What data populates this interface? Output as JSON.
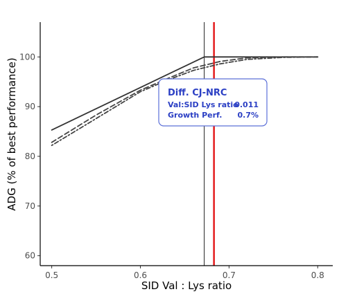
{
  "chart_data": {
    "type": "line",
    "xlabel": "SID Val : Lys ratio",
    "ylabel": "ADG (% of best performance)",
    "xlim": [
      0.487,
      0.817
    ],
    "ylim": [
      58,
      107
    ],
    "x_ticks": [
      0.5,
      0.6,
      0.7,
      0.8
    ],
    "x_tick_labels": [
      "0.5",
      "0.6",
      "0.7",
      "0.8"
    ],
    "y_ticks": [
      60,
      70,
      80,
      90,
      100
    ],
    "y_tick_labels": [
      "60",
      "70",
      "80",
      "90",
      "100"
    ],
    "grid": false,
    "series": [
      {
        "style": "solid",
        "color": "#333333",
        "points": [
          [
            0.5,
            85.3
          ],
          [
            0.672,
            100
          ],
          [
            0.8,
            100
          ]
        ]
      },
      {
        "style": "dashed",
        "color": "#444444",
        "points": [
          [
            0.5,
            82.8
          ],
          [
            0.55,
            88.3
          ],
          [
            0.6,
            93.3
          ],
          [
            0.63,
            95.6
          ],
          [
            0.66,
            97.8
          ],
          [
            0.69,
            99.1
          ],
          [
            0.72,
            99.8
          ],
          [
            0.76,
            100
          ],
          [
            0.8,
            100
          ]
        ]
      },
      {
        "style": "dotdash",
        "color": "#444444",
        "points": [
          [
            0.5,
            82.2
          ],
          [
            0.55,
            87.6
          ],
          [
            0.6,
            93.0
          ],
          [
            0.63,
            95.3
          ],
          [
            0.66,
            97.3
          ],
          [
            0.69,
            98.6
          ],
          [
            0.72,
            99.5
          ],
          [
            0.76,
            99.9
          ],
          [
            0.8,
            100
          ]
        ]
      }
    ],
    "vlines": [
      {
        "x": 0.672,
        "color": "#222222",
        "width": 1
      },
      {
        "x": 0.683,
        "color": "#e41a1c",
        "width": 2.5
      }
    ],
    "annotation": {
      "title": "Diff. CJ-NRC",
      "rows": [
        {
          "label": "Val:SID Lys ratio",
          "value": "0.011"
        },
        {
          "label": "Growth Perf.",
          "value": "0.7%"
        }
      ],
      "text_color": "#2b3fc4",
      "border_color": "#5b6fd8"
    }
  }
}
